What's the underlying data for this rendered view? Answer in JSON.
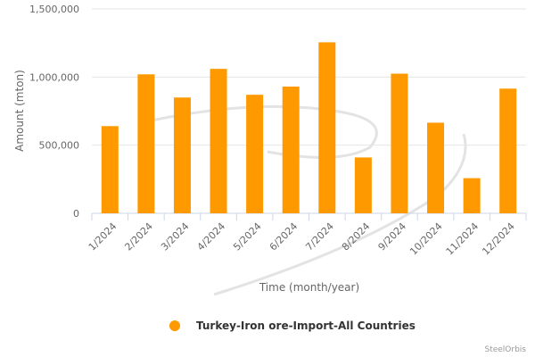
{
  "chart_data": {
    "type": "bar",
    "categories": [
      "1/2024",
      "2/2024",
      "3/2024",
      "4/2024",
      "5/2024",
      "6/2024",
      "7/2024",
      "8/2024",
      "9/2024",
      "10/2024",
      "11/2024",
      "12/2024"
    ],
    "series": [
      {
        "name": "Turkey-Iron ore-Import-All Countries",
        "values": [
          640000,
          1020000,
          850000,
          1060000,
          870000,
          930000,
          1255000,
          410000,
          1025000,
          665000,
          258000,
          915000
        ]
      }
    ],
    "xlabel": "Time (month/year)",
    "ylabel": "Amount (mton)",
    "ylim": [
      0,
      1500000
    ],
    "yticks": [
      {
        "value": 0,
        "label": "0"
      },
      {
        "value": 500000,
        "label": "500,000"
      },
      {
        "value": 1000000,
        "label": "1,000,000"
      },
      {
        "value": 1500000,
        "label": "1,500,000"
      }
    ],
    "grid": true,
    "legend_position": "bottom-center",
    "bar_color": "#FF9900",
    "credit": "SteelOrbis"
  }
}
